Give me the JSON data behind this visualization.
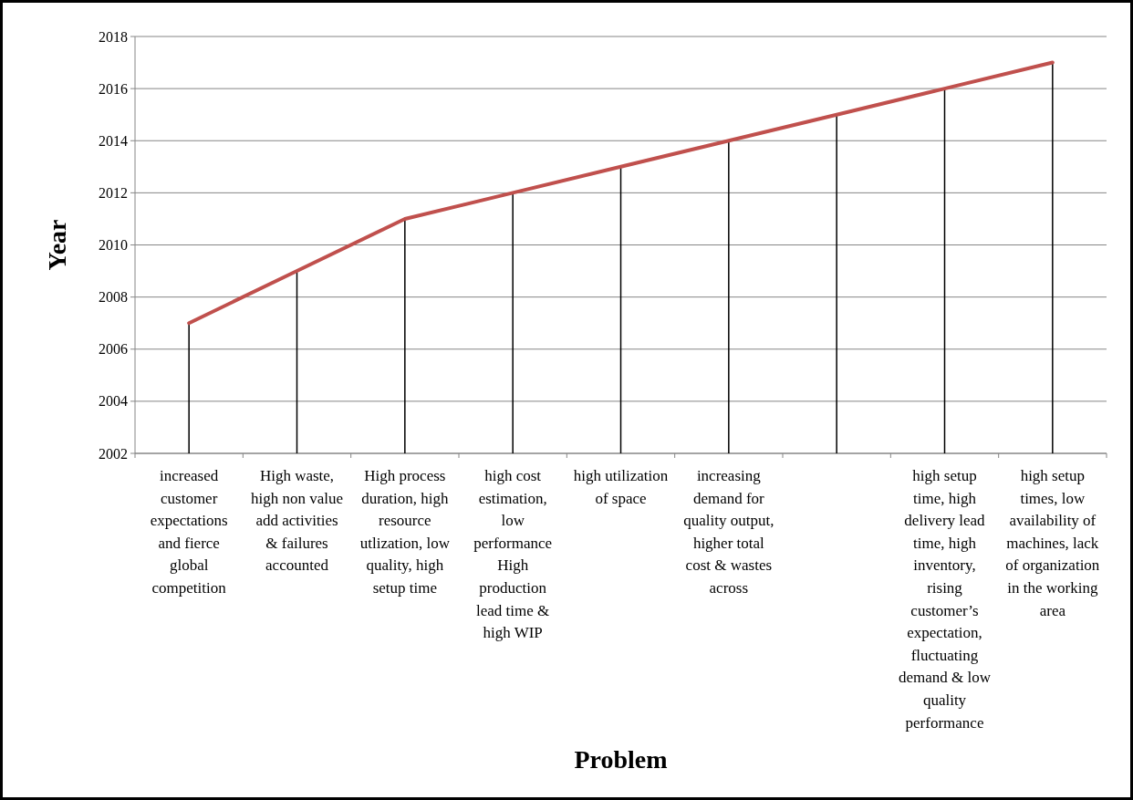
{
  "chart_data": {
    "type": "line",
    "xlabel": "Problem",
    "ylabel": "Year",
    "categories": [
      "increased customer expectations and fierce global competition",
      "High waste, high non value add activities & failures accounted",
      "High process duration, high resource utlization, low quality, high setup time",
      "high cost estimation, low performance High production lead time & high WIP",
      "high utilization of space",
      "increasing demand for quality output, higher total cost & wastes across",
      null,
      "high setup time, high delivery lead time, high inventory, rising customer’s expectation, fluctuating demand & low quality performance",
      "high setup times, low availability of machines, lack of organization in the working area"
    ],
    "series": [
      {
        "type": "bar",
        "color": "#000000",
        "values": [
          2007,
          2009,
          2011,
          2012,
          2013,
          2014,
          2015,
          2016,
          2017
        ]
      },
      {
        "color": "#c0504d",
        "values": [
          2007,
          2009,
          2011,
          2012,
          2013,
          2014,
          2015,
          2016,
          2017
        ]
      }
    ],
    "ylim": [
      2002,
      2018
    ],
    "yticks": [
      2002,
      2004,
      2006,
      2008,
      2010,
      2012,
      2014,
      2016,
      2018
    ],
    "grid": "y",
    "marker": "none",
    "line_style": "solid"
  }
}
